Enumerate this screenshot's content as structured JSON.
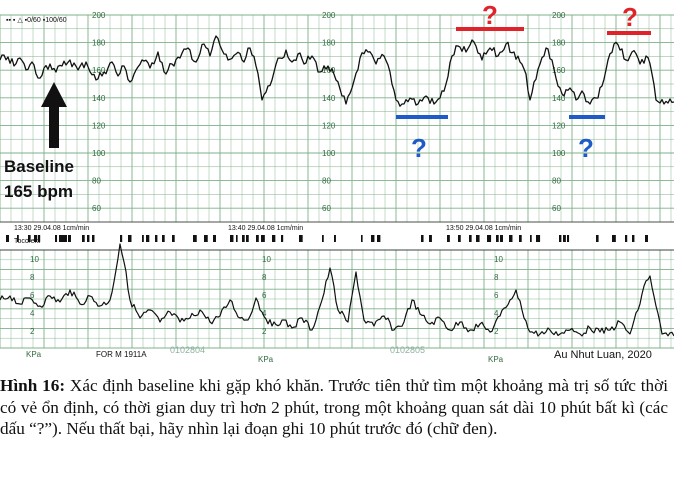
{
  "figure": {
    "baseline_label_line1": "Baseline",
    "baseline_label_line2": "165 bpm",
    "question_mark": "?",
    "credit": "Au Nhut Luan, 2020",
    "top_header": "▪▪ ▪ △ ▪0/60 ▪100/60",
    "toco_header": "Toco/ext",
    "strip_headers": [
      "13:30  29.04.08  1cm/min",
      "13:40  29.04.08  1cm/min",
      "13:50  29.04.08  1cm/min"
    ],
    "model_label": "FOR M 1911A",
    "serial_1": "0102804",
    "serial_2": "0102805",
    "kpa_label": "KPa",
    "fhr_ticks": [
      "200",
      "180",
      "160",
      "140",
      "120",
      "100",
      "80",
      "60"
    ],
    "toco_ticks": [
      "10",
      "8",
      "6",
      "4",
      "2"
    ],
    "colors": {
      "grid": "#7fb08a",
      "red_marker": "#e0232a",
      "blue_marker": "#1e5bc6",
      "trace": "#111111"
    }
  },
  "caption": {
    "label": "Hình 16:",
    "text": " Xác định baseline khi gặp khó khăn. Trước tiên thử tìm một khoảng mà trị số tức thời có vẻ ổn định, có thời gian duy trì hơn 2 phút, trong một khoảng quan sát dài 10 phút bất kì (các dấu “?”). Nếu thất bại, hãy nhìn lại đoạn ghi 10 phút trước đó (chữ đen)."
  }
}
